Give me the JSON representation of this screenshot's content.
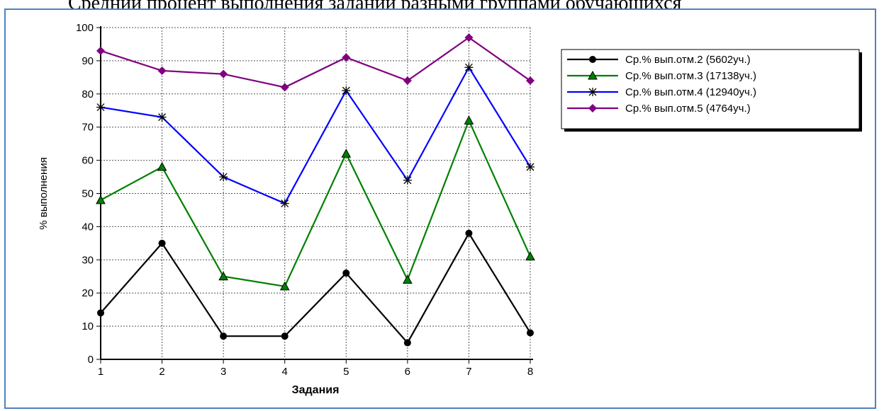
{
  "page": {
    "top_text": "Средний процент выполнения заданий разными группами обучающихся"
  },
  "chart_data": {
    "type": "line",
    "title": "",
    "xlabel": "Задания",
    "ylabel": "% выполнения",
    "x": [
      1,
      2,
      3,
      4,
      5,
      6,
      7,
      8
    ],
    "ylim": [
      0,
      100
    ],
    "yticks": [
      0,
      10,
      20,
      30,
      40,
      50,
      60,
      70,
      80,
      90,
      100
    ],
    "grid": true,
    "legend_position": "top-right",
    "series": [
      {
        "name": "Ср.% вып.отм.2 (5602уч.)",
        "color": "#000000",
        "marker": "circle",
        "values": [
          14,
          35,
          7,
          7,
          26,
          5,
          38,
          8
        ]
      },
      {
        "name": "Ср.% вып.отм.3 (17138уч.)",
        "color": "#008000",
        "marker": "triangle",
        "values": [
          48,
          58,
          25,
          22,
          62,
          24,
          72,
          31
        ]
      },
      {
        "name": "Ср.% вып.отм.4 (12940уч.)",
        "color": "#0000ff",
        "marker": "star",
        "values": [
          76,
          73,
          55,
          47,
          81,
          54,
          88,
          58
        ]
      },
      {
        "name": "Ср.% вып.отм.5 (4764уч.)",
        "color": "#800080",
        "marker": "diamond",
        "values": [
          93,
          87,
          86,
          82,
          91,
          84,
          97,
          84
        ]
      }
    ]
  }
}
